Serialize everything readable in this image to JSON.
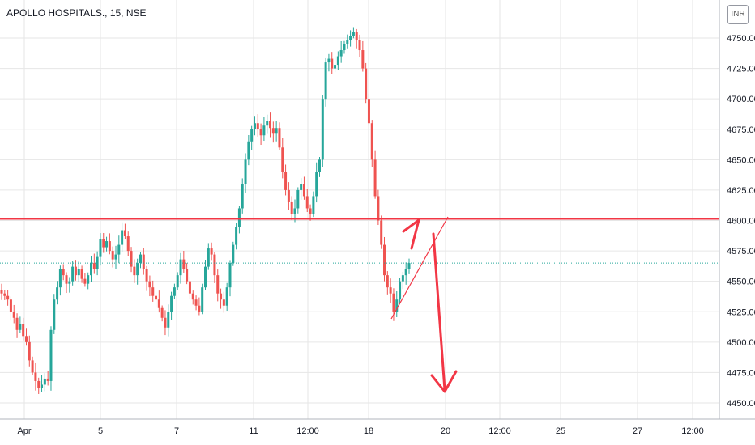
{
  "header": {
    "title": "APOLLO HOSPITALS., 15, NSE",
    "currency": "INR"
  },
  "chart_data": {
    "type": "candlestick",
    "symbol": "APOLLO HOSPITALS.",
    "interval": "15",
    "exchange": "NSE",
    "currency": "INR",
    "ylim": [
      4440,
      4780
    ],
    "y_ticks": [
      4450,
      4475,
      4500,
      4525,
      4550,
      4575,
      4600,
      4625,
      4650,
      4675,
      4700,
      4725,
      4750
    ],
    "y_tick_labels": [
      "4450.00",
      "4475.00",
      "4500.00",
      "4525.00",
      "4550.00",
      "4575.00",
      "4600.00",
      "4625.00",
      "4650.00",
      "4675.00",
      "4700.00",
      "4725.00",
      "4750.00"
    ],
    "x_ticks": [
      "Apr",
      "5",
      "7",
      "11",
      "12:00",
      "18",
      "20",
      "12:00",
      "25",
      "27",
      "12:00"
    ],
    "horizontal_line": {
      "value": 4601.3,
      "label": "4601.30",
      "color": "#f23645"
    },
    "last_price": {
      "value": 4565.0,
      "label": "4565.00",
      "color": "#26a69a"
    },
    "colors": {
      "up": "#26a69a",
      "down": "#ef5350",
      "grid": "#e6e6e6",
      "annotation": "#f23645"
    },
    "grid": true,
    "closes": [
      4540,
      4538,
      4535,
      4525,
      4520,
      4510,
      4515,
      4505,
      4500,
      4485,
      4475,
      4468,
      4462,
      4465,
      4470,
      4468,
      4510,
      4535,
      4545,
      4560,
      4555,
      4548,
      4550,
      4562,
      4555,
      4560,
      4552,
      4548,
      4555,
      4565,
      4560,
      4570,
      4585,
      4578,
      4583,
      4575,
      4568,
      4572,
      4580,
      4592,
      4587,
      4575,
      4562,
      4555,
      4565,
      4572,
      4560,
      4550,
      4545,
      4538,
      4535,
      4528,
      4520,
      4512,
      4525,
      4538,
      4545,
      4555,
      4568,
      4560,
      4550,
      4540,
      4535,
      4530,
      4525,
      4545,
      4562,
      4577,
      4572,
      4555,
      4540,
      4535,
      4530,
      4545,
      4565,
      4580,
      4595,
      4610,
      4630,
      4650,
      4665,
      4675,
      4680,
      4675,
      4670,
      4678,
      4682,
      4676,
      4672,
      4676,
      4660,
      4640,
      4625,
      4615,
      4605,
      4610,
      4625,
      4630,
      4620,
      4610,
      4605,
      4620,
      4640,
      4650,
      4700,
      4730,
      4733,
      4725,
      4728,
      4735,
      4740,
      4745,
      4748,
      4752,
      4755,
      4748,
      4740,
      4725,
      4700,
      4680,
      4650,
      4620,
      4600,
      4580,
      4555,
      4545,
      4540,
      4525,
      4535,
      4550,
      4555,
      4560,
      4565
    ],
    "annotations": {
      "trend_line": "ascending line from the recent low",
      "arrow_up": "up arrow toward 4601.30 line",
      "arrow_down": "down arrow toward 4450 area"
    }
  }
}
